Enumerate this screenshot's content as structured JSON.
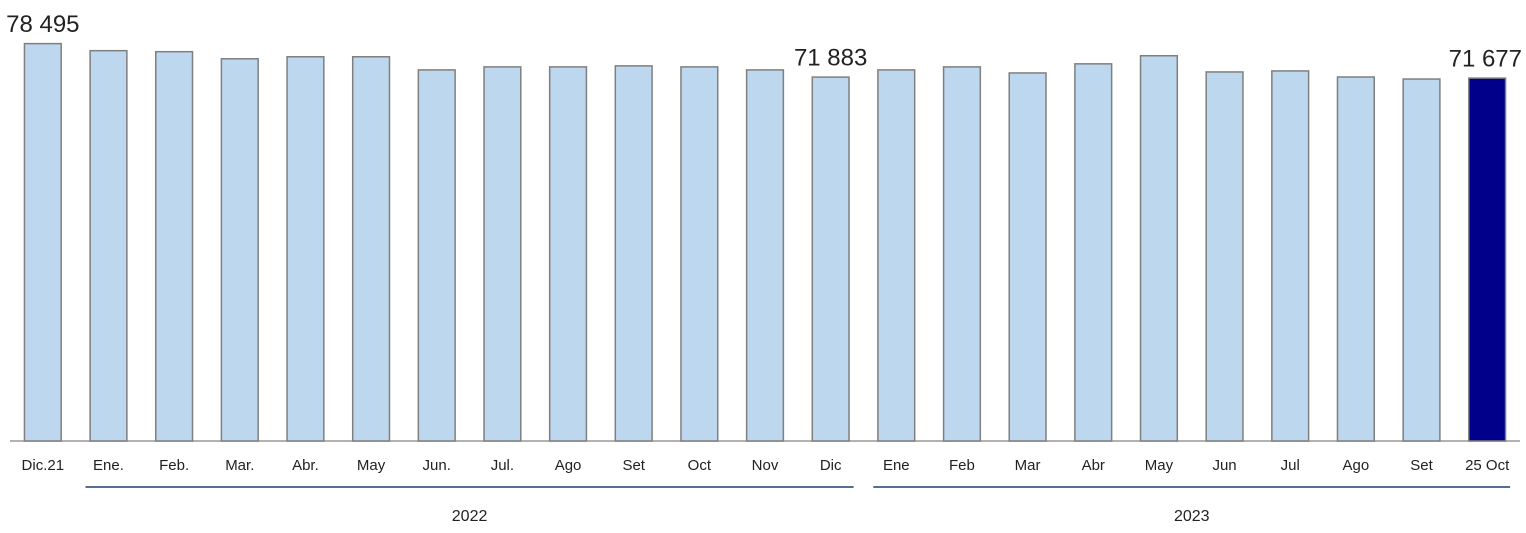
{
  "chart_data": {
    "type": "bar",
    "categories": [
      "Dic.21",
      "Ene.",
      "Feb.",
      "Mar.",
      "Abr.",
      "May",
      "Jun.",
      "Jul.",
      "Ago",
      "Set",
      "Oct",
      "Nov",
      "Dic",
      "Ene",
      "Feb",
      "Mar",
      "Abr",
      "May",
      "Jun",
      "Jul",
      "Ago",
      "Set",
      "25 Oct"
    ],
    "values": [
      78495,
      77100,
      76900,
      75500,
      75900,
      75900,
      73300,
      73900,
      73900,
      74100,
      73900,
      73300,
      71883,
      73300,
      73900,
      72700,
      74500,
      76100,
      72900,
      73100,
      71900,
      71500,
      71677
    ],
    "value_labels": [
      "78 495",
      null,
      null,
      null,
      null,
      null,
      null,
      null,
      null,
      null,
      null,
      null,
      "71 883",
      null,
      null,
      null,
      null,
      null,
      null,
      null,
      null,
      null,
      "71 677"
    ],
    "color": "#bdd7ee",
    "edge_color": "#7f7f7f",
    "highlight": [
      22
    ],
    "highlight_color": "#00008b",
    "ylim": [
      0,
      80000
    ],
    "groups": [
      {
        "label": "2022",
        "from": 1,
        "to": 12
      },
      {
        "label": "2023",
        "from": 13,
        "to": 22
      }
    ]
  }
}
